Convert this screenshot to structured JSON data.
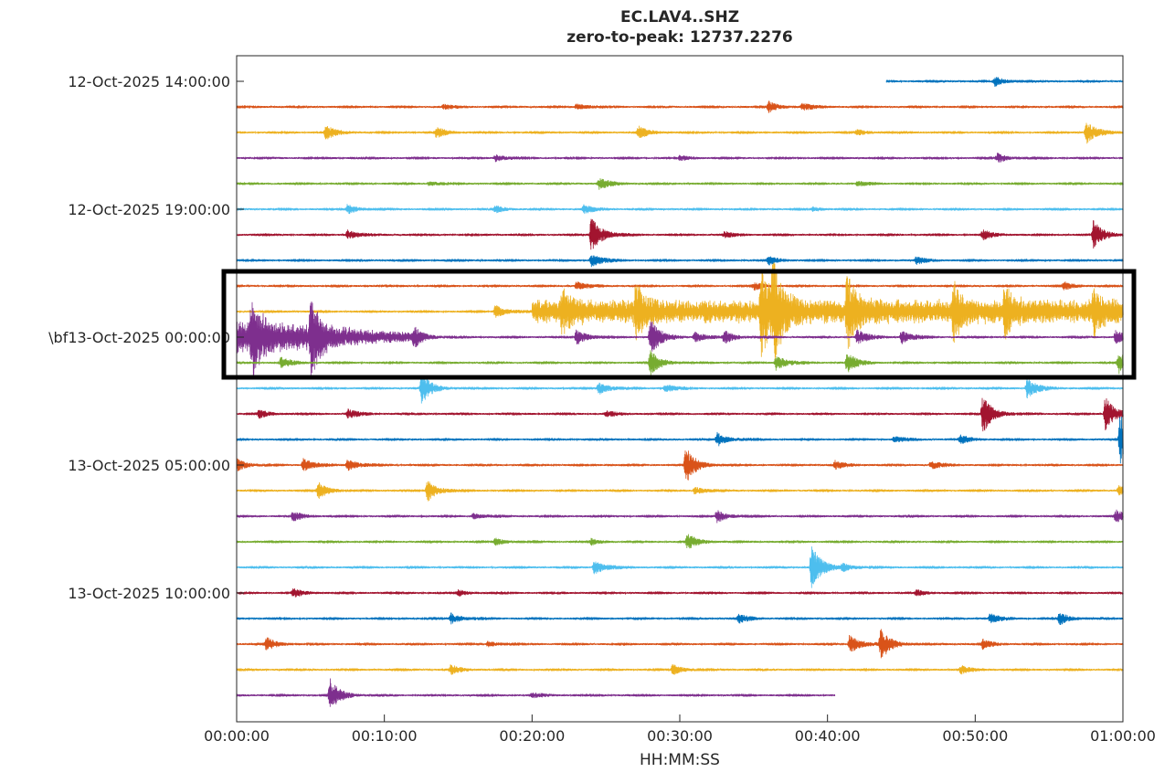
{
  "chart_data": {
    "type": "line",
    "title": "EC.LAV4..SHZ",
    "subtitle": "zero-to-peak: 12737.2276",
    "xlabel": "HH:MM:SS",
    "ylabel": "",
    "xlim": [
      0,
      60
    ],
    "x_ticks": [
      "00:00:00",
      "00:10:00",
      "00:20:00",
      "00:30:00",
      "00:40:00",
      "00:50:00",
      "01:00:00"
    ],
    "y_ticks": [
      {
        "row": 0,
        "label": "12-Oct-2025 14:00:00"
      },
      {
        "row": 5,
        "label": "12-Oct-2025 19:00:00"
      },
      {
        "row": 10,
        "label": "\\bf13-Oct-2025 00:00:00"
      },
      {
        "row": 15,
        "label": "13-Oct-2025 05:00:00"
      },
      {
        "row": 20,
        "label": "13-Oct-2025 10:00:00"
      }
    ],
    "colors": [
      "#0072BD",
      "#D95319",
      "#EDB120",
      "#7E2F8E",
      "#77AC30",
      "#4DBEEE",
      "#A2142F"
    ],
    "highlight_rows": [
      8,
      11
    ],
    "grid": false,
    "rows": [
      {
        "start": 44,
        "end": 60,
        "events": [
          [
            51.3,
            0.35
          ]
        ]
      },
      {
        "events": [
          [
            23,
            0.25
          ],
          [
            36,
            0.4
          ],
          [
            38.3,
            0.25
          ],
          [
            14,
            0.15
          ]
        ]
      },
      {
        "events": [
          [
            6,
            0.55
          ],
          [
            13.5,
            0.4
          ],
          [
            27.2,
            0.45
          ],
          [
            57.5,
            0.9
          ],
          [
            42,
            0.2
          ]
        ]
      },
      {
        "events": [
          [
            17.5,
            0.25
          ],
          [
            51.5,
            0.35
          ],
          [
            30,
            0.15
          ]
        ]
      },
      {
        "events": [
          [
            24.5,
            0.45
          ],
          [
            13,
            0.15
          ],
          [
            42,
            0.15
          ]
        ]
      },
      {
        "events": [
          [
            7.5,
            0.35
          ],
          [
            17.5,
            0.25
          ],
          [
            23.5,
            0.3
          ],
          [
            39,
            0.15
          ]
        ]
      },
      {
        "events": [
          [
            24,
            1.6
          ],
          [
            7.5,
            0.35
          ],
          [
            50.5,
            0.35
          ],
          [
            58,
            1.1
          ],
          [
            33,
            0.2
          ]
        ]
      },
      {
        "events": [
          [
            24,
            0.5
          ],
          [
            36,
            0.3
          ],
          [
            46,
            0.25
          ]
        ]
      },
      {
        "events": [
          [
            23,
            0.3
          ],
          [
            35,
            0.3
          ],
          [
            56,
            0.3
          ]
        ]
      },
      {
        "events": [
          [
            17.5,
            0.5
          ],
          [
            22,
            1.2
          ],
          [
            27,
            1.8
          ],
          [
            35.5,
            3.2
          ],
          [
            36.3,
            3.0
          ],
          [
            41.3,
            2.5
          ],
          [
            48.5,
            1.8
          ],
          [
            52,
            1.6
          ],
          [
            58,
            1.4
          ]
        ],
        "tremor": [
          20,
          60,
          0.9
        ]
      },
      {
        "events": [
          [
            1,
            2.2
          ],
          [
            5,
            2.6
          ],
          [
            12,
            0.9
          ],
          [
            23,
            0.6
          ],
          [
            28,
            1.5
          ],
          [
            31,
            0.4
          ],
          [
            33,
            0.5
          ],
          [
            42,
            0.6
          ],
          [
            45,
            0.5
          ],
          [
            59.5,
            0.5
          ]
        ],
        "tremor": [
          0,
          12,
          1.4
        ]
      },
      {
        "events": [
          [
            28,
            1.0
          ],
          [
            36.5,
            0.6
          ],
          [
            41.3,
            0.8
          ],
          [
            59.7,
            0.8
          ],
          [
            3,
            0.4
          ]
        ]
      },
      {
        "events": [
          [
            12.5,
            1.2
          ],
          [
            24.5,
            0.5
          ],
          [
            53.5,
            0.8
          ],
          [
            29,
            0.3
          ]
        ]
      },
      {
        "events": [
          [
            1.5,
            0.3
          ],
          [
            7.5,
            0.35
          ],
          [
            50.5,
            1.5
          ],
          [
            58.8,
            1.4
          ],
          [
            25,
            0.2
          ]
        ]
      },
      {
        "events": [
          [
            32.5,
            0.55
          ],
          [
            59.8,
            2.0
          ],
          [
            44.5,
            0.2
          ],
          [
            49,
            0.3
          ]
        ]
      },
      {
        "events": [
          [
            0,
            0.5
          ],
          [
            4.5,
            0.5
          ],
          [
            7.5,
            0.45
          ],
          [
            30.4,
            1.4
          ],
          [
            40.5,
            0.3
          ],
          [
            47,
            0.3
          ]
        ]
      },
      {
        "events": [
          [
            5.5,
            0.65
          ],
          [
            12.9,
            0.85
          ],
          [
            31,
            0.3
          ],
          [
            59.7,
            0.35
          ]
        ]
      },
      {
        "events": [
          [
            3.8,
            0.35
          ],
          [
            32.5,
            0.5
          ],
          [
            59.5,
            0.45
          ],
          [
            16,
            0.2
          ]
        ]
      },
      {
        "events": [
          [
            30.5,
            0.6
          ],
          [
            17.5,
            0.25
          ],
          [
            24,
            0.2
          ]
        ]
      },
      {
        "events": [
          [
            38.9,
            1.8
          ],
          [
            24.2,
            0.6
          ],
          [
            41,
            0.3
          ]
        ]
      },
      {
        "events": [
          [
            3.8,
            0.3
          ],
          [
            15,
            0.2
          ],
          [
            46,
            0.2
          ]
        ]
      },
      {
        "events": [
          [
            14.5,
            0.4
          ],
          [
            34,
            0.3
          ],
          [
            51,
            0.35
          ],
          [
            55.7,
            0.45
          ]
        ]
      },
      {
        "events": [
          [
            2,
            0.5
          ],
          [
            41.5,
            0.8
          ],
          [
            43.6,
            1.2
          ],
          [
            50.5,
            0.35
          ],
          [
            17,
            0.2
          ]
        ]
      },
      {
        "events": [
          [
            14.5,
            0.35
          ],
          [
            29.5,
            0.4
          ],
          [
            49,
            0.3
          ]
        ]
      },
      {
        "start": 0,
        "end": 40.5,
        "events": [
          [
            6.3,
            1.3
          ],
          [
            20,
            0.15
          ]
        ]
      }
    ]
  }
}
